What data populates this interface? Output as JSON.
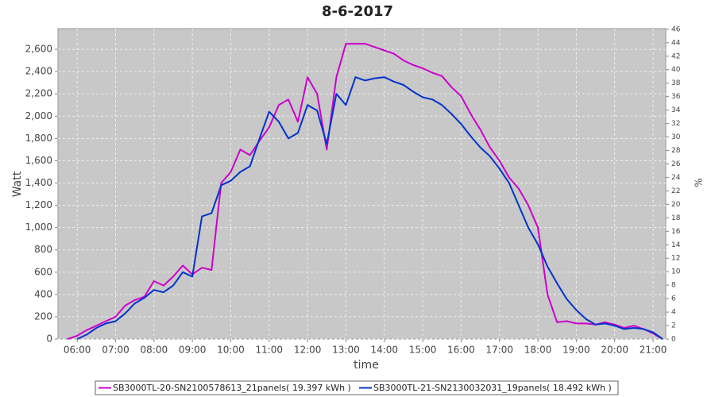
{
  "chart_data": {
    "type": "line",
    "title": "8-6-2017",
    "xlabel": "time",
    "ylabel": "Watt",
    "y2label": "%",
    "x": [
      5.75,
      6,
      6.25,
      6.5,
      6.75,
      7,
      7.25,
      7.5,
      7.75,
      8,
      8.25,
      8.5,
      8.75,
      9,
      9.25,
      9.5,
      9.75,
      10,
      10.25,
      10.5,
      10.75,
      11,
      11.25,
      11.5,
      11.75,
      12,
      12.25,
      12.5,
      12.75,
      13,
      13.25,
      13.5,
      13.75,
      14,
      14.25,
      14.5,
      14.75,
      15,
      15.25,
      15.5,
      15.75,
      16,
      16.25,
      16.5,
      16.75,
      17,
      17.25,
      17.5,
      17.75,
      18,
      18.25,
      18.5,
      18.75,
      19,
      19.25,
      19.5,
      19.75,
      20,
      20.25,
      20.5,
      20.75,
      21,
      21.25
    ],
    "series": [
      {
        "name": "SB3000TL-20-SN2100578613_21panels( 19.397 kWh )",
        "color": "#cc00cc",
        "values": [
          0,
          30,
          80,
          120,
          160,
          200,
          300,
          350,
          380,
          520,
          480,
          560,
          660,
          580,
          640,
          620,
          1400,
          1500,
          1700,
          1650,
          1780,
          1900,
          2100,
          2150,
          1950,
          2350,
          2200,
          1700,
          2350,
          2650,
          2650,
          2650,
          2620,
          2590,
          2560,
          2500,
          2460,
          2430,
          2390,
          2360,
          2260,
          2180,
          2020,
          1880,
          1720,
          1600,
          1450,
          1350,
          1200,
          1000,
          400,
          150,
          160,
          140,
          140,
          130,
          150,
          130,
          100,
          120,
          90,
          50,
          0
        ]
      },
      {
        "name": "SB3000TL-21-SN2130032031_19panels( 18.492 kWh )",
        "color": "#0033cc",
        "values": [
          null,
          0,
          40,
          100,
          140,
          160,
          230,
          320,
          370,
          440,
          420,
          480,
          600,
          560,
          1100,
          1130,
          1380,
          1420,
          1500,
          1550,
          1800,
          2040,
          1950,
          1800,
          1850,
          2100,
          2050,
          1750,
          2200,
          2100,
          2350,
          2320,
          2340,
          2350,
          2310,
          2280,
          2220,
          2170,
          2150,
          2100,
          2020,
          1930,
          1820,
          1720,
          1640,
          1530,
          1400,
          1200,
          1000,
          850,
          650,
          500,
          360,
          260,
          180,
          130,
          140,
          120,
          90,
          100,
          90,
          60,
          0
        ]
      }
    ],
    "xlim": [
      5.5,
      21.33
    ],
    "xticks": [
      {
        "value": 6,
        "label": "06:00"
      },
      {
        "value": 7,
        "label": "07:00"
      },
      {
        "value": 8,
        "label": "08:00"
      },
      {
        "value": 9,
        "label": "09:00"
      },
      {
        "value": 10,
        "label": "10:00"
      },
      {
        "value": 11,
        "label": "11:00"
      },
      {
        "value": 12,
        "label": "12:00"
      },
      {
        "value": 13,
        "label": "13:00"
      },
      {
        "value": 14,
        "label": "14:00"
      },
      {
        "value": 15,
        "label": "15:00"
      },
      {
        "value": 16,
        "label": "16:00"
      },
      {
        "value": 17,
        "label": "17:00"
      },
      {
        "value": 18,
        "label": "18:00"
      },
      {
        "value": 19,
        "label": "19:00"
      },
      {
        "value": 20,
        "label": "20:00"
      },
      {
        "value": 21,
        "label": "21:00"
      }
    ],
    "ylim": [
      0,
      2786
    ],
    "yticks": [
      0,
      200,
      400,
      600,
      800,
      {
        "value": 1000,
        "label": "1,000"
      },
      {
        "value": 1200,
        "label": "1,200"
      },
      {
        "value": 1400,
        "label": "1,400"
      },
      {
        "value": 1600,
        "label": "1,600"
      },
      {
        "value": 1800,
        "label": "1,800"
      },
      {
        "value": 2000,
        "label": "2,000"
      },
      {
        "value": 2200,
        "label": "2,200"
      },
      {
        "value": 2400,
        "label": "2,400"
      },
      {
        "value": 2600,
        "label": "2,600"
      }
    ],
    "y2lim": [
      0,
      46.1
    ],
    "y2ticks": [
      0,
      2,
      4,
      6,
      8,
      10,
      12,
      14,
      16,
      18,
      20,
      22,
      24,
      26,
      28,
      30,
      32,
      34,
      36,
      38,
      40,
      42,
      44,
      46
    ],
    "grid": true,
    "legend": "bottom"
  }
}
